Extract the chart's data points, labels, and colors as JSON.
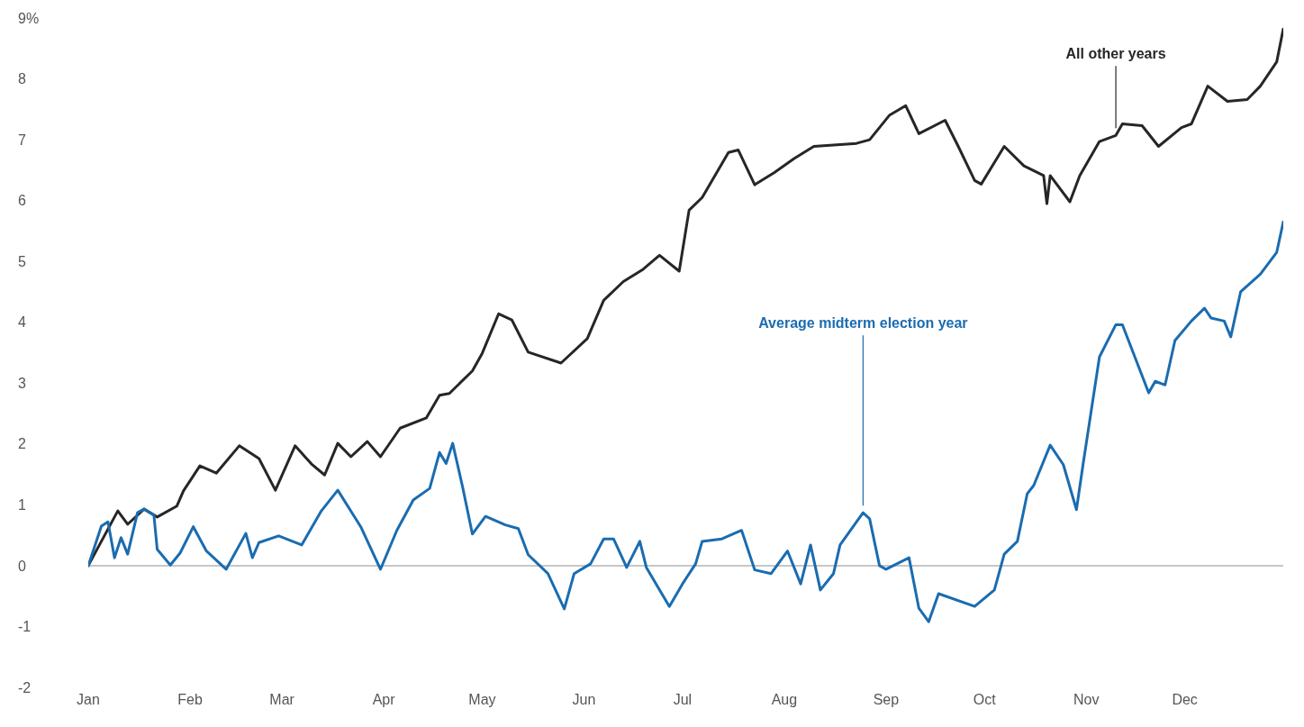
{
  "chart_data": {
    "type": "line",
    "xlim": [
      "--01-01",
      "--12-31"
    ],
    "xticks": [
      {
        "value": "--01-01",
        "label": "Jan"
      },
      {
        "value": "--02-01",
        "label": "Feb"
      },
      {
        "value": "--03-01",
        "label": "Mar"
      },
      {
        "value": "--04-01",
        "label": "Apr"
      },
      {
        "value": "--05-01",
        "label": "May"
      },
      {
        "value": "--06-01",
        "label": "Jun"
      },
      {
        "value": "--07-01",
        "label": "Jul"
      },
      {
        "value": "--08-01",
        "label": "Aug"
      },
      {
        "value": "--09-01",
        "label": "Sep"
      },
      {
        "value": "--10-01",
        "label": "Oct"
      },
      {
        "value": "--11-01",
        "label": "Nov"
      },
      {
        "value": "--12-01",
        "label": "Dec"
      }
    ],
    "ylim": [
      -2,
      9
    ],
    "yticks": [
      -2,
      -1,
      0,
      1,
      2,
      3,
      4,
      5,
      6,
      7,
      8,
      {
        "value": 9,
        "label": "9%"
      }
    ],
    "grid": false,
    "marker": "none",
    "line_style": "solid",
    "ref_lines": [
      {
        "axis": "y",
        "value": 0,
        "color": "#b5b5b5"
      }
    ],
    "series": [
      {
        "name": "All other years",
        "color": "#262626",
        "x": [
          "--01-01",
          "--01-10",
          "--01-13",
          "--01-18",
          "--01-22",
          "--01-28",
          "--01-30",
          "--02-04",
          "--02-09",
          "--02-16",
          "--02-22",
          "--02-27",
          "--03-05",
          "--03-10",
          "--03-14",
          "--03-18",
          "--03-22",
          "--03-27",
          "--03-31",
          "--04-06",
          "--04-14",
          "--04-18",
          "--04-21",
          "--04-28",
          "--05-01",
          "--05-06",
          "--05-10",
          "--05-15",
          "--05-25",
          "--06-02",
          "--06-07",
          "--06-13",
          "--06-19",
          "--06-24",
          "--06-30",
          "--07-03",
          "--07-07",
          "--07-15",
          "--07-18",
          "--07-23",
          "--07-29",
          "--08-04",
          "--08-10",
          "--08-23",
          "--08-27",
          "--09-02",
          "--09-07",
          "--09-11",
          "--09-19",
          "--09-23",
          "--09-28",
          "--09-30",
          "--10-07",
          "--10-13",
          "--10-19",
          "--10-20",
          "--10-21",
          "--10-27",
          "--10-30",
          "--11-05",
          "--11-10",
          "--11-12",
          "--11-18",
          "--11-23",
          "--11-30",
          "--12-03",
          "--12-08",
          "--12-14",
          "--12-20",
          "--12-24",
          "--12-29",
          "--12-31"
        ],
        "values": [
          0,
          0.9,
          0.68,
          0.93,
          0.8,
          0.98,
          1.23,
          1.64,
          1.52,
          1.97,
          1.76,
          1.24,
          1.97,
          1.67,
          1.49,
          2.01,
          1.79,
          2.04,
          1.79,
          2.26,
          2.43,
          2.8,
          2.83,
          3.2,
          3.49,
          4.14,
          4.04,
          3.51,
          3.33,
          3.73,
          4.36,
          4.67,
          4.87,
          5.1,
          4.84,
          5.84,
          6.05,
          6.79,
          6.83,
          6.26,
          6.46,
          6.69,
          6.89,
          6.94,
          7.0,
          7.4,
          7.56,
          7.1,
          7.32,
          6.89,
          6.33,
          6.27,
          6.89,
          6.57,
          6.41,
          5.95,
          6.41,
          5.98,
          6.41,
          6.97,
          7.07,
          7.26,
          7.23,
          6.89,
          7.2,
          7.26,
          7.88,
          7.63,
          7.66,
          7.88,
          8.28,
          8.82
        ]
      },
      {
        "name": "Average midterm election year",
        "color": "#1a6cb0",
        "x": [
          "--01-01",
          "--01-05",
          "--01-07",
          "--01-09",
          "--01-11",
          "--01-13",
          "--01-16",
          "--01-18",
          "--01-21",
          "--01-22",
          "--01-26",
          "--01-29",
          "--02-02",
          "--02-06",
          "--02-12",
          "--02-18",
          "--02-20",
          "--02-22",
          "--02-28",
          "--03-07",
          "--03-13",
          "--03-18",
          "--03-25",
          "--03-31",
          "--04-05",
          "--04-10",
          "--04-15",
          "--04-18",
          "--04-20",
          "--04-22",
          "--04-25",
          "--04-28",
          "--05-02",
          "--05-08",
          "--05-12",
          "--05-15",
          "--05-21",
          "--05-26",
          "--05-29",
          "--06-03",
          "--06-07",
          "--06-10",
          "--06-14",
          "--06-18",
          "--06-20",
          "--06-27",
          "--07-01",
          "--07-05",
          "--07-07",
          "--07-13",
          "--07-19",
          "--07-23",
          "--07-28",
          "--08-02",
          "--08-06",
          "--08-09",
          "--08-12",
          "--08-16",
          "--08-18",
          "--08-25",
          "--08-27",
          "--08-30",
          "--09-01",
          "--09-08",
          "--09-11",
          "--09-14",
          "--09-17",
          "--09-28",
          "--10-04",
          "--10-07",
          "--10-11",
          "--10-14",
          "--10-16",
          "--10-21",
          "--10-25",
          "--10-29",
          "--10-31",
          "--11-05",
          "--11-10",
          "--11-12",
          "--11-20",
          "--11-22",
          "--11-25",
          "--11-28",
          "--12-03",
          "--12-07",
          "--12-09",
          "--12-13",
          "--12-15",
          "--12-18",
          "--12-24",
          "--12-29",
          "--12-31"
        ],
        "values": [
          0,
          0.65,
          0.72,
          0.13,
          0.46,
          0.19,
          0.87,
          0.93,
          0.83,
          0.27,
          0.01,
          0.21,
          0.64,
          0.24,
          -0.06,
          0.53,
          0.13,
          0.38,
          0.49,
          0.34,
          0.9,
          1.24,
          0.64,
          -0.06,
          0.58,
          1.08,
          1.27,
          1.86,
          1.68,
          2.01,
          1.3,
          0.52,
          0.81,
          0.67,
          0.61,
          0.18,
          -0.13,
          -0.71,
          -0.13,
          0.03,
          0.44,
          0.44,
          -0.03,
          0.4,
          -0.03,
          -0.67,
          -0.3,
          0.03,
          0.4,
          0.44,
          0.58,
          -0.07,
          -0.13,
          0.24,
          -0.3,
          0.34,
          -0.4,
          -0.13,
          0.34,
          0.87,
          0.77,
          0.0,
          -0.06,
          0.13,
          -0.7,
          -0.92,
          -0.46,
          -0.67,
          -0.4,
          0.19,
          0.4,
          1.18,
          1.32,
          1.98,
          1.66,
          0.92,
          1.66,
          3.43,
          3.96,
          3.96,
          2.84,
          3.03,
          2.97,
          3.7,
          4.02,
          4.23,
          4.07,
          4.02,
          3.76,
          4.5,
          4.79,
          5.15,
          5.65
        ]
      }
    ]
  }
}
